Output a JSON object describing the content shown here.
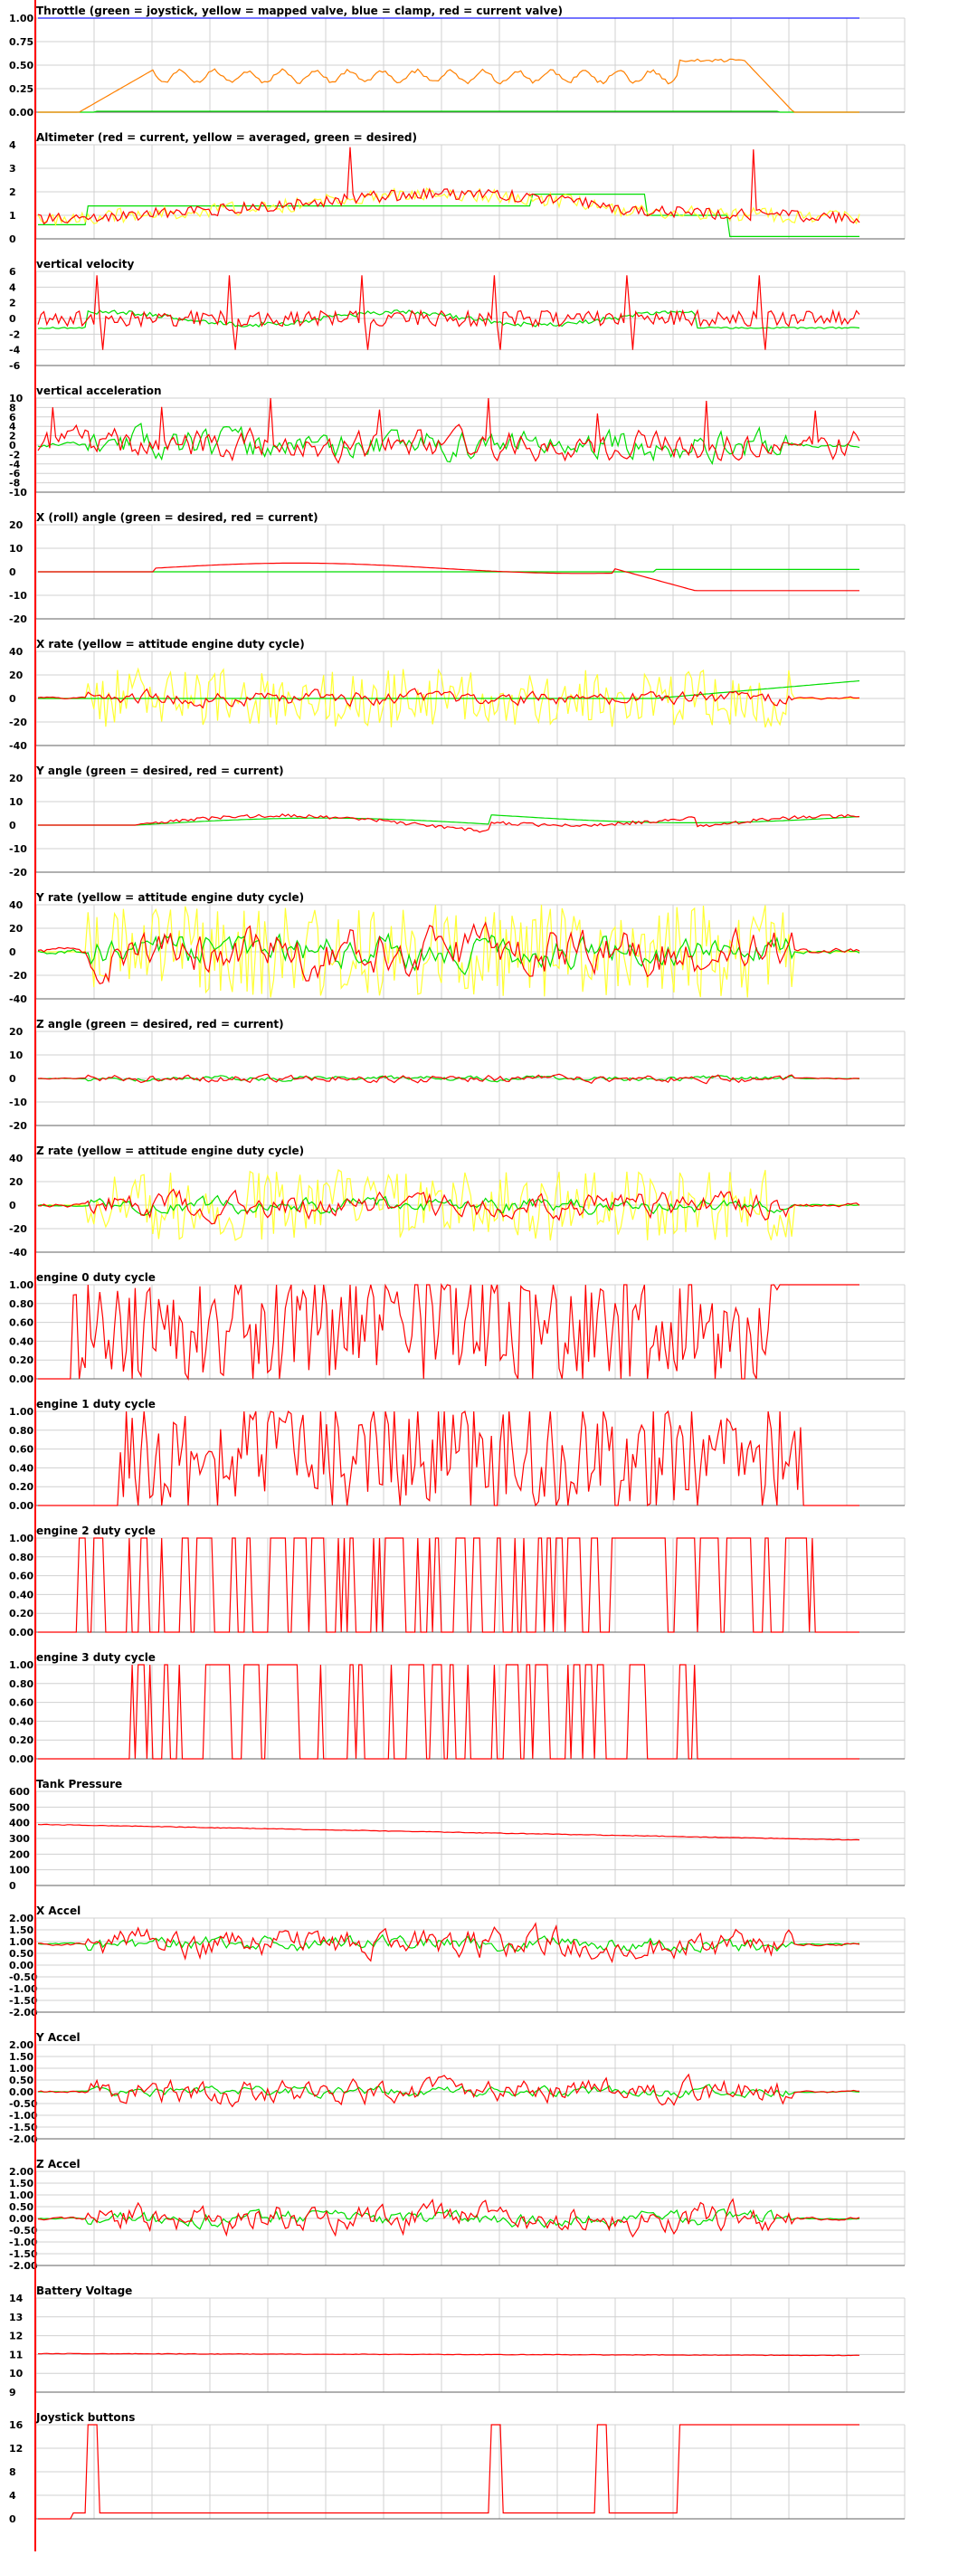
{
  "colors": {
    "grid": "#d0d0d0",
    "axis": "#606060",
    "red": "#ff0000",
    "green": "#00dd00",
    "yellow": "#ffff33",
    "orange": "#ff8000",
    "blue": "#2020ff"
  },
  "chart_data": [
    {
      "type": "line",
      "title": "Throttle (green = joystick, yellow = mapped valve, blue = clamp, red = current valve)",
      "yticks": [
        "1.00",
        "0.75",
        "0.50",
        "0.25",
        "0.00"
      ],
      "ylim": [
        0,
        1
      ],
      "series": [
        {
          "color": "blue",
          "gen": "flat",
          "v": 1.0
        },
        {
          "color": "green",
          "gen": "throttle_green"
        },
        {
          "color": "orange",
          "gen": "throttle_current"
        }
      ]
    },
    {
      "type": "line",
      "title": "Altimeter (red = current, yellow = averaged, green = desired)",
      "yticks": [
        "4",
        "3",
        "2",
        "1",
        "0"
      ],
      "ylim": [
        0,
        4
      ],
      "series": [
        {
          "color": "green",
          "gen": "alt_desired"
        },
        {
          "color": "yellow",
          "gen": "alt_avg"
        },
        {
          "color": "red",
          "gen": "alt_current"
        }
      ]
    },
    {
      "type": "line",
      "title": "vertical velocity",
      "yticks": [
        "6",
        "4",
        "2",
        "0",
        "-2",
        "-4",
        "-6"
      ],
      "ylim": [
        -6,
        6
      ],
      "series": [
        {
          "color": "green",
          "gen": "vv_green"
        },
        {
          "color": "red",
          "gen": "vv_red"
        }
      ]
    },
    {
      "type": "line",
      "title": "vertical acceleration",
      "yticks": [
        "10",
        "8",
        "6",
        "4",
        "2",
        "0",
        "-2",
        "-4",
        "-6",
        "-8",
        "-10"
      ],
      "ylim": [
        -10,
        10
      ],
      "series": [
        {
          "color": "green",
          "gen": "noise",
          "amp": 3,
          "seed": 11
        },
        {
          "color": "red",
          "gen": "noise_spiky",
          "amp": 3,
          "seed": 12
        }
      ]
    },
    {
      "type": "line",
      "title": "X (roll) angle (green = desired, red = current)",
      "yticks": [
        "20",
        "10",
        "0",
        "-10",
        "-20"
      ],
      "ylim": [
        -20,
        20
      ],
      "series": [
        {
          "color": "green",
          "gen": "xang_green"
        },
        {
          "color": "red",
          "gen": "xang_red"
        }
      ]
    },
    {
      "type": "line",
      "title": "X rate (yellow = attitude engine duty cycle)",
      "yticks": [
        "40",
        "20",
        "0",
        "-20",
        "-40"
      ],
      "ylim": [
        -40,
        40
      ],
      "series": [
        {
          "color": "yellow",
          "gen": "rate_yellow",
          "amp": 25,
          "seed": 21
        },
        {
          "color": "green",
          "gen": "xrate_green"
        },
        {
          "color": "red",
          "gen": "noise",
          "amp": 6,
          "seed": 22
        }
      ]
    },
    {
      "type": "line",
      "title": "Y angle (green = desired, red = current)",
      "yticks": [
        "20",
        "10",
        "0",
        "-10",
        "-20"
      ],
      "ylim": [
        -20,
        20
      ],
      "series": [
        {
          "color": "green",
          "gen": "yang_green"
        },
        {
          "color": "red",
          "gen": "yang_red"
        }
      ]
    },
    {
      "type": "line",
      "title": "Y rate (yellow = attitude engine duty cycle)",
      "yticks": [
        "40",
        "20",
        "0",
        "-20",
        "-40"
      ],
      "ylim": [
        -40,
        40
      ],
      "series": [
        {
          "color": "yellow",
          "gen": "rate_yellow",
          "amp": 40,
          "seed": 31
        },
        {
          "color": "green",
          "gen": "noise",
          "amp": 12,
          "seed": 32
        },
        {
          "color": "red",
          "gen": "noise",
          "amp": 18,
          "seed": 33
        }
      ]
    },
    {
      "type": "line",
      "title": "Z angle (green = desired, red = current)",
      "yticks": [
        "20",
        "10",
        "0",
        "-10",
        "-20"
      ],
      "ylim": [
        -20,
        20
      ],
      "series": [
        {
          "color": "green",
          "gen": "noise",
          "amp": 1,
          "seed": 41
        },
        {
          "color": "red",
          "gen": "noise",
          "amp": 1.5,
          "seed": 42
        }
      ]
    },
    {
      "type": "line",
      "title": "Z rate (yellow = attitude engine duty cycle)",
      "yticks": [
        "40",
        "20",
        "0",
        "-20",
        "-40"
      ],
      "ylim": [
        -40,
        40
      ],
      "series": [
        {
          "color": "yellow",
          "gen": "rate_yellow",
          "amp": 30,
          "seed": 51
        },
        {
          "color": "green",
          "gen": "noise",
          "amp": 6,
          "seed": 52
        },
        {
          "color": "red",
          "gen": "noise",
          "amp": 10,
          "seed": 53
        }
      ]
    },
    {
      "type": "line",
      "title": "engine 0 duty cycle",
      "yticks": [
        "1.00",
        "0.80",
        "0.60",
        "0.40",
        "0.20",
        "0.00"
      ],
      "ylim": [
        0,
        1
      ],
      "series": [
        {
          "color": "red",
          "gen": "duty",
          "seed": 61,
          "start": 0.04,
          "end": 0.9,
          "endv": 1.0
        }
      ]
    },
    {
      "type": "line",
      "title": "engine 1 duty cycle",
      "yticks": [
        "1.00",
        "0.80",
        "0.60",
        "0.40",
        "0.20",
        "0.00"
      ],
      "ylim": [
        0,
        1
      ],
      "series": [
        {
          "color": "red",
          "gen": "duty",
          "seed": 71,
          "start": 0.1,
          "end": 0.93,
          "endv": 0.0
        }
      ]
    },
    {
      "type": "line",
      "title": "engine 2 duty cycle",
      "yticks": [
        "1.00",
        "0.80",
        "0.60",
        "0.40",
        "0.20",
        "0.00"
      ],
      "ylim": [
        0,
        1
      ],
      "series": [
        {
          "color": "red",
          "gen": "duty_square",
          "seed": 81,
          "start": 0.02,
          "end": 0.96,
          "endv": 0.0
        }
      ]
    },
    {
      "type": "line",
      "title": "engine 3 duty cycle",
      "yticks": [
        "1.00",
        "0.80",
        "0.60",
        "0.40",
        "0.20",
        "0.00"
      ],
      "ylim": [
        0,
        1
      ],
      "series": [
        {
          "color": "red",
          "gen": "duty_square",
          "seed": 91,
          "start": 0.1,
          "end": 0.8,
          "endv": 0.0
        }
      ]
    },
    {
      "type": "line",
      "title": "Tank Pressure",
      "yticks": [
        "600",
        "500",
        "400",
        "300",
        "200",
        "100",
        "0"
      ],
      "ylim": [
        0,
        600
      ],
      "series": [
        {
          "color": "red",
          "gen": "linear",
          "from": 390,
          "to": 290,
          "jit": 4
        }
      ]
    },
    {
      "type": "line",
      "title": "X Accel",
      "yticks": [
        "2.00",
        "1.50",
        "1.00",
        "0.50",
        "0.00",
        "-0.50",
        "-1.00",
        "-1.50",
        "-2.00"
      ],
      "ylim": [
        -2,
        2
      ],
      "series": [
        {
          "color": "green",
          "gen": "noise_around",
          "base": 0.9,
          "amp": 0.3,
          "seed": 101
        },
        {
          "color": "red",
          "gen": "noise_around",
          "base": 0.9,
          "amp": 0.6,
          "seed": 102
        }
      ]
    },
    {
      "type": "line",
      "title": "Y Accel",
      "yticks": [
        "2.00",
        "1.50",
        "1.00",
        "0.50",
        "0.00",
        "-0.50",
        "-1.00",
        "-1.50",
        "-2.00"
      ],
      "ylim": [
        -2,
        2
      ],
      "series": [
        {
          "color": "green",
          "gen": "noise_around",
          "base": 0,
          "amp": 0.2,
          "seed": 111
        },
        {
          "color": "red",
          "gen": "noise_around",
          "base": 0,
          "amp": 0.5,
          "seed": 112
        }
      ]
    },
    {
      "type": "line",
      "title": "Z Accel",
      "yticks": [
        "2.00",
        "1.50",
        "1.00",
        "0.50",
        "0.00",
        "-0.50",
        "-1.00",
        "-1.50",
        "-2.00"
      ],
      "ylim": [
        -2,
        2
      ],
      "series": [
        {
          "color": "green",
          "gen": "noise_around",
          "base": 0,
          "amp": 0.3,
          "seed": 121
        },
        {
          "color": "red",
          "gen": "noise_around",
          "base": 0,
          "amp": 0.6,
          "seed": 122
        }
      ]
    },
    {
      "type": "line",
      "title": "Battery Voltage",
      "yticks": [
        "14",
        "13",
        "12",
        "11",
        "10",
        "9"
      ],
      "ylim": [
        9,
        14
      ],
      "series": [
        {
          "color": "red",
          "gen": "linear",
          "from": 11.05,
          "to": 10.95,
          "jit": 0.03
        }
      ]
    },
    {
      "type": "line",
      "title": "Joystick buttons",
      "yticks": [
        "16",
        "12",
        "8",
        "4",
        "0"
      ],
      "ylim": [
        0,
        16
      ],
      "series": [
        {
          "color": "red",
          "gen": "buttons"
        }
      ]
    }
  ]
}
